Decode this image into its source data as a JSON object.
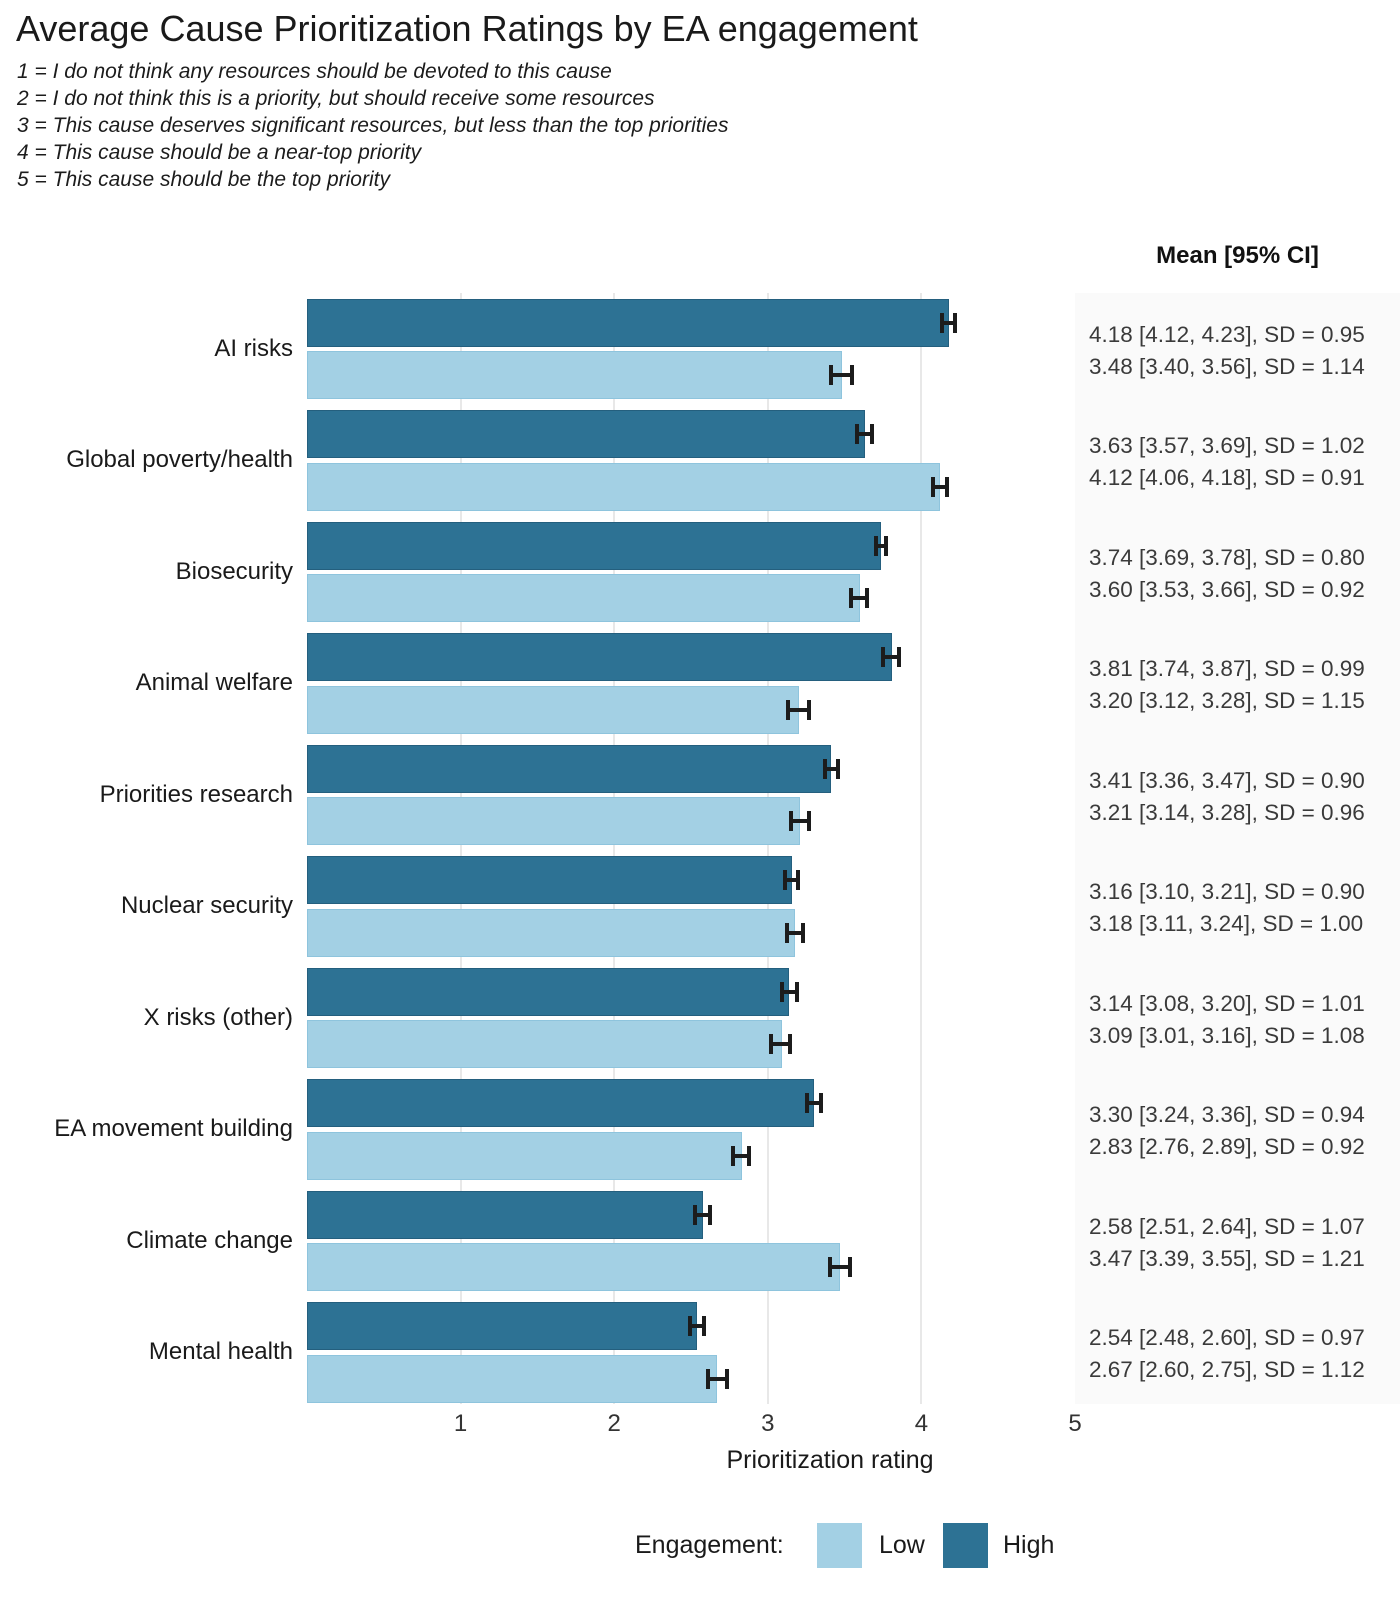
{
  "title": "Average Cause Prioritization Ratings by EA engagement",
  "subtitle_lines": [
    "1 = I do not think any resources should be devoted to this cause",
    "2 = I do not think this is a priority, but should receive some resources",
    "3 = This cause deserves significant resources, but less than the top priorities",
    "4 = This cause should be a near-top priority",
    "5 = This cause should be the top priority"
  ],
  "stats_header": "Mean [95% CI]",
  "axis": {
    "label": "Prioritization rating",
    "ticks": [
      1,
      2,
      3,
      4,
      5
    ]
  },
  "legend": {
    "label": "Engagement:",
    "items": [
      {
        "name": "Low",
        "color": "#A3D0E4"
      },
      {
        "name": "High",
        "color": "#2D7294"
      }
    ]
  },
  "colors": {
    "high": "#2D7294",
    "low": "#A3D0E4",
    "gridline": "#E8E8E8",
    "stats_bg": "#FAFAFA",
    "error_bar": "#1C1C1C",
    "stats_text": "#3A3A3A"
  },
  "chart_data": {
    "type": "bar",
    "orientation": "horizontal",
    "title": "Average Cause Prioritization Ratings by EA engagement",
    "xlabel": "Prioritization rating",
    "xlim": [
      0,
      5
    ],
    "xticks": [
      1,
      2,
      3,
      4,
      5
    ],
    "grid": "vertical",
    "legend_position": "bottom",
    "bar_order_within_group": [
      "High",
      "Low"
    ],
    "stats_column_header": "Mean [95% CI]",
    "categories": [
      "AI risks",
      "Global poverty/health",
      "Biosecurity",
      "Animal welfare",
      "Priorities research",
      "Nuclear security",
      "X risks (other)",
      "EA movement building",
      "Climate change",
      "Mental health"
    ],
    "series": [
      {
        "name": "High",
        "color": "#2D7294",
        "values": [
          4.18,
          3.63,
          3.74,
          3.81,
          3.41,
          3.16,
          3.14,
          3.3,
          2.58,
          2.54
        ],
        "ci_low": [
          4.12,
          3.57,
          3.69,
          3.74,
          3.36,
          3.1,
          3.08,
          3.24,
          2.51,
          2.48
        ],
        "ci_high": [
          4.23,
          3.69,
          3.78,
          3.87,
          3.47,
          3.21,
          3.2,
          3.36,
          2.64,
          2.6
        ],
        "sd": [
          0.95,
          1.02,
          0.8,
          0.99,
          0.9,
          0.9,
          1.01,
          0.94,
          1.07,
          0.97
        ]
      },
      {
        "name": "Low",
        "color": "#A3D0E4",
        "values": [
          3.48,
          4.12,
          3.6,
          3.2,
          3.21,
          3.18,
          3.09,
          2.83,
          3.47,
          2.67
        ],
        "ci_low": [
          3.4,
          4.06,
          3.53,
          3.12,
          3.14,
          3.11,
          3.01,
          2.76,
          3.39,
          2.6
        ],
        "ci_high": [
          3.56,
          4.18,
          3.66,
          3.28,
          3.28,
          3.24,
          3.16,
          2.89,
          3.55,
          2.75
        ],
        "sd": [
          1.14,
          0.91,
          0.92,
          1.15,
          0.96,
          1.0,
          1.08,
          0.92,
          1.21,
          1.12
        ]
      }
    ]
  }
}
